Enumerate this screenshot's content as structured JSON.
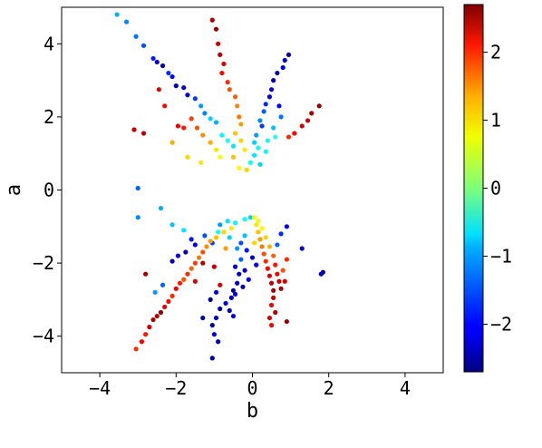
{
  "chart_data": {
    "type": "scatter",
    "xlabel": "b",
    "ylabel": "a",
    "xlim": [
      -5,
      5
    ],
    "ylim": [
      -5,
      5
    ],
    "xticks": [
      -4,
      -2,
      0,
      2,
      4
    ],
    "yticks": [
      -4,
      -2,
      0,
      2,
      4
    ],
    "x_tick_labels": [
      "−4",
      "−2",
      "0",
      "2",
      "4"
    ],
    "y_tick_labels": [
      "−4",
      "−2",
      "0",
      "2",
      "4"
    ],
    "grid": false,
    "colorbar": {
      "range": [
        -2.7,
        2.7
      ],
      "colormap": "jet",
      "ticks": [
        -2,
        -1,
        0,
        1,
        2
      ],
      "tick_labels": [
        "−2",
        "−1",
        "0",
        "1",
        "2"
      ]
    },
    "points": [
      {
        "b": -3.55,
        "a": 4.8,
        "c": -1.1
      },
      {
        "b": -3.3,
        "a": 4.6,
        "c": -1.3
      },
      {
        "b": -3.05,
        "a": 4.2,
        "c": -1.4
      },
      {
        "b": -2.85,
        "a": 3.95,
        "c": -1.6
      },
      {
        "b": -2.6,
        "a": 3.6,
        "c": -1.9
      },
      {
        "b": -2.5,
        "a": 3.5,
        "c": -2.2
      },
      {
        "b": -2.35,
        "a": 3.4,
        "c": -2.4
      },
      {
        "b": -2.2,
        "a": 3.2,
        "c": -1.8
      },
      {
        "b": -2.1,
        "a": 3.1,
        "c": -2.0
      },
      {
        "b": -2.0,
        "a": 2.85,
        "c": -2.3
      },
      {
        "b": -1.8,
        "a": 2.8,
        "c": -2.2
      },
      {
        "b": -1.7,
        "a": 2.6,
        "c": -2.1
      },
      {
        "b": -1.5,
        "a": 2.5,
        "c": -1.7
      },
      {
        "b": -1.35,
        "a": 2.3,
        "c": -1.2
      },
      {
        "b": -1.25,
        "a": 2.1,
        "c": -1.3
      },
      {
        "b": -1.1,
        "a": 1.95,
        "c": -0.9
      },
      {
        "b": -0.95,
        "a": 1.85,
        "c": -1.1
      },
      {
        "b": -0.8,
        "a": 1.5,
        "c": -0.7
      },
      {
        "b": -0.65,
        "a": 1.35,
        "c": -0.5
      },
      {
        "b": -0.5,
        "a": 1.2,
        "c": -0.8
      },
      {
        "b": -1.05,
        "a": 4.65,
        "c": 2.5
      },
      {
        "b": -0.95,
        "a": 4.4,
        "c": 2.6
      },
      {
        "b": -0.9,
        "a": 4.0,
        "c": 2.3
      },
      {
        "b": -0.85,
        "a": 3.7,
        "c": 2.4
      },
      {
        "b": -0.75,
        "a": 3.45,
        "c": 2.2
      },
      {
        "b": -0.8,
        "a": 3.2,
        "c": 2.0
      },
      {
        "b": -0.65,
        "a": 2.95,
        "c": 1.8
      },
      {
        "b": -0.6,
        "a": 2.75,
        "c": 1.6
      },
      {
        "b": -0.45,
        "a": 2.55,
        "c": 1.5
      },
      {
        "b": -0.4,
        "a": 2.3,
        "c": 1.3
      },
      {
        "b": -0.35,
        "a": 2.0,
        "c": 1.4
      },
      {
        "b": -0.3,
        "a": 1.8,
        "c": 1.2
      },
      {
        "b": -0.45,
        "a": 1.55,
        "c": 1.0
      },
      {
        "b": -0.3,
        "a": 1.35,
        "c": 0.9
      },
      {
        "b": -0.2,
        "a": 1.1,
        "c": 0.8
      },
      {
        "b": -0.5,
        "a": 0.9,
        "c": 1.0
      },
      {
        "b": -0.35,
        "a": 0.6,
        "c": 0.7
      },
      {
        "b": -0.15,
        "a": 0.55,
        "c": 0.9
      },
      {
        "b": -1.6,
        "a": 1.95,
        "c": 1.7
      },
      {
        "b": -1.45,
        "a": 1.7,
        "c": 1.6
      },
      {
        "b": -1.3,
        "a": 1.5,
        "c": 1.3
      },
      {
        "b": -1.1,
        "a": 1.3,
        "c": 1.1
      },
      {
        "b": -0.95,
        "a": 1.1,
        "c": 0.8
      },
      {
        "b": -0.85,
        "a": 0.9,
        "c": 0.6
      },
      {
        "b": -1.35,
        "a": 0.75,
        "c": 0.8
      },
      {
        "b": -1.7,
        "a": 0.9,
        "c": 0.9
      },
      {
        "b": -2.1,
        "a": 1.3,
        "c": 1.1
      },
      {
        "b": -1.8,
        "a": 1.7,
        "c": 1.9
      },
      {
        "b": -1.95,
        "a": 1.75,
        "c": 2.1
      },
      {
        "b": -2.3,
        "a": 2.3,
        "c": 2.0
      },
      {
        "b": -2.45,
        "a": 2.75,
        "c": 2.2
      },
      {
        "b": -3.1,
        "a": 1.65,
        "c": 2.3
      },
      {
        "b": -2.85,
        "a": 1.55,
        "c": 2.4
      },
      {
        "b": 0.95,
        "a": 3.7,
        "c": -2.4
      },
      {
        "b": 0.85,
        "a": 3.55,
        "c": -2.3
      },
      {
        "b": 0.8,
        "a": 3.35,
        "c": -2.2
      },
      {
        "b": 0.65,
        "a": 3.2,
        "c": -2.5
      },
      {
        "b": 0.55,
        "a": 3.0,
        "c": -2.4
      },
      {
        "b": 0.5,
        "a": 2.75,
        "c": -2.1
      },
      {
        "b": 0.45,
        "a": 2.55,
        "c": -2.2
      },
      {
        "b": 0.35,
        "a": 2.35,
        "c": -1.8
      },
      {
        "b": 0.3,
        "a": 2.15,
        "c": -1.5
      },
      {
        "b": 0.2,
        "a": 1.9,
        "c": -1.3
      },
      {
        "b": 0.25,
        "a": 1.75,
        "c": -1.7
      },
      {
        "b": 0.1,
        "a": 1.5,
        "c": -1.2
      },
      {
        "b": 0.05,
        "a": 1.3,
        "c": -0.9
      },
      {
        "b": 0.15,
        "a": 1.15,
        "c": -0.6
      },
      {
        "b": 0.35,
        "a": 1.05,
        "c": -0.7
      },
      {
        "b": 0.05,
        "a": 0.95,
        "c": -0.8
      },
      {
        "b": -0.05,
        "a": 0.75,
        "c": -0.6
      },
      {
        "b": 0.2,
        "a": 0.7,
        "c": -0.9
      },
      {
        "b": 0.6,
        "a": 1.45,
        "c": -0.5
      },
      {
        "b": 0.75,
        "a": 2.0,
        "c": -1.4
      },
      {
        "b": 0.7,
        "a": 2.3,
        "c": -2.0
      },
      {
        "b": 0.55,
        "a": 1.7,
        "c": -1.0
      },
      {
        "b": 0.4,
        "a": 1.35,
        "c": -0.6
      },
      {
        "b": 1.75,
        "a": 2.3,
        "c": 2.6
      },
      {
        "b": 1.55,
        "a": 2.1,
        "c": 2.5
      },
      {
        "b": 1.45,
        "a": 1.9,
        "c": 2.3
      },
      {
        "b": 1.3,
        "a": 1.75,
        "c": 2.2
      },
      {
        "b": 1.1,
        "a": 1.55,
        "c": 2.0
      },
      {
        "b": 0.95,
        "a": 1.45,
        "c": 1.8
      },
      {
        "b": -3.0,
        "a": 0.05,
        "c": -1.5
      },
      {
        "b": -2.4,
        "a": -0.5,
        "c": -1.1
      },
      {
        "b": -3.0,
        "a": -0.75,
        "c": -1.3
      },
      {
        "b": -2.1,
        "a": -0.95,
        "c": -1.0
      },
      {
        "b": -1.8,
        "a": -1.1,
        "c": -0.8
      },
      {
        "b": -1.6,
        "a": -1.35,
        "c": -1.9
      },
      {
        "b": -1.5,
        "a": -1.5,
        "c": -2.1
      },
      {
        "b": -1.75,
        "a": -1.7,
        "c": -2.3
      },
      {
        "b": -1.95,
        "a": -1.8,
        "c": -2.2
      },
      {
        "b": -2.1,
        "a": -1.95,
        "c": -2.4
      },
      {
        "b": -1.25,
        "a": -1.25,
        "c": -1.6
      },
      {
        "b": -1.05,
        "a": -1.45,
        "c": -1.7
      },
      {
        "b": -0.85,
        "a": -0.95,
        "c": -1.2
      },
      {
        "b": -0.65,
        "a": -0.85,
        "c": -0.8
      },
      {
        "b": -0.45,
        "a": -0.9,
        "c": -0.7
      },
      {
        "b": -0.2,
        "a": -0.8,
        "c": -0.6
      },
      {
        "b": -0.05,
        "a": -0.75,
        "c": -0.9
      },
      {
        "b": -0.9,
        "a": -1.15,
        "c": -0.6
      },
      {
        "b": -0.6,
        "a": -1.3,
        "c": -0.9
      },
      {
        "b": -0.4,
        "a": -1.6,
        "c": -1.2
      },
      {
        "b": -0.3,
        "a": -1.9,
        "c": -1.5
      },
      {
        "b": -0.45,
        "a": -2.1,
        "c": -2.2
      },
      {
        "b": -0.35,
        "a": -2.3,
        "c": -2.3
      },
      {
        "b": -0.4,
        "a": -2.55,
        "c": -2.4
      },
      {
        "b": -0.5,
        "a": -2.75,
        "c": -2.5
      },
      {
        "b": -0.55,
        "a": -2.95,
        "c": -2.3
      },
      {
        "b": -0.7,
        "a": -3.1,
        "c": -2.2
      },
      {
        "b": -0.6,
        "a": -3.3,
        "c": -2.4
      },
      {
        "b": -0.5,
        "a": -3.45,
        "c": -2.1
      },
      {
        "b": -0.85,
        "a": -3.25,
        "c": -2.5
      },
      {
        "b": -0.95,
        "a": -3.5,
        "c": -2.3
      },
      {
        "b": -1.05,
        "a": -3.7,
        "c": -2.6
      },
      {
        "b": -1.0,
        "a": -3.95,
        "c": -2.2
      },
      {
        "b": -0.9,
        "a": -4.15,
        "c": -2.4
      },
      {
        "b": -1.05,
        "a": -4.6,
        "c": -2.5
      },
      {
        "b": -1.3,
        "a": -3.5,
        "c": -2.4
      },
      {
        "b": -1.1,
        "a": -3.0,
        "c": -2.6
      },
      {
        "b": -0.95,
        "a": -2.8,
        "c": -2.2
      },
      {
        "b": -0.2,
        "a": -1.25,
        "c": -1.0
      },
      {
        "b": -2.55,
        "a": -2.8,
        "c": -1.2
      },
      {
        "b": -2.35,
        "a": -2.6,
        "c": -1.5
      },
      {
        "b": -3.05,
        "a": -4.35,
        "c": 1.8
      },
      {
        "b": -2.9,
        "a": -4.15,
        "c": 2.1
      },
      {
        "b": -2.8,
        "a": -3.95,
        "c": 1.9
      },
      {
        "b": -2.7,
        "a": -3.75,
        "c": 2.3
      },
      {
        "b": -2.6,
        "a": -3.55,
        "c": 2.5
      },
      {
        "b": -2.5,
        "a": -3.45,
        "c": 2.4
      },
      {
        "b": -2.4,
        "a": -3.35,
        "c": 2.6
      },
      {
        "b": -2.3,
        "a": -3.2,
        "c": 2.2
      },
      {
        "b": -2.2,
        "a": -3.05,
        "c": 2.0
      },
      {
        "b": -2.1,
        "a": -2.9,
        "c": 1.8
      },
      {
        "b": -2.0,
        "a": -2.7,
        "c": 2.1
      },
      {
        "b": -1.9,
        "a": -2.55,
        "c": 1.9
      },
      {
        "b": -1.8,
        "a": -2.45,
        "c": 1.6
      },
      {
        "b": -1.7,
        "a": -2.3,
        "c": 1.8
      },
      {
        "b": -1.6,
        "a": -2.15,
        "c": 1.5
      },
      {
        "b": -1.5,
        "a": -2.0,
        "c": 1.7
      },
      {
        "b": -1.4,
        "a": -1.85,
        "c": 1.4
      },
      {
        "b": -1.3,
        "a": -1.7,
        "c": 1.6
      },
      {
        "b": -1.2,
        "a": -1.55,
        "c": 1.3
      },
      {
        "b": -1.1,
        "a": -1.4,
        "c": 1.2
      },
      {
        "b": -0.95,
        "a": -1.3,
        "c": 1.0
      },
      {
        "b": -0.75,
        "a": -1.15,
        "c": 0.9
      },
      {
        "b": -0.55,
        "a": -1.05,
        "c": 0.8
      },
      {
        "b": -1.3,
        "a": -2.0,
        "c": 2.4
      },
      {
        "b": -1.0,
        "a": -2.1,
        "c": 2.3
      },
      {
        "b": -1.5,
        "a": -2.5,
        "c": 2.2
      },
      {
        "b": -2.8,
        "a": -2.3,
        "c": 2.5
      },
      {
        "b": -0.85,
        "a": -2.6,
        "c": 2.2
      },
      {
        "b": -0.7,
        "a": -1.6,
        "c": 1.2
      },
      {
        "b": 0.05,
        "a": -0.75,
        "c": 0.6
      },
      {
        "b": 0.1,
        "a": -0.95,
        "c": 0.8
      },
      {
        "b": 0.15,
        "a": -1.15,
        "c": 1.0
      },
      {
        "b": 0.2,
        "a": -1.35,
        "c": 1.2
      },
      {
        "b": 0.25,
        "a": -1.55,
        "c": 1.4
      },
      {
        "b": 0.3,
        "a": -1.75,
        "c": 1.6
      },
      {
        "b": 0.35,
        "a": -1.95,
        "c": 1.8
      },
      {
        "b": 0.4,
        "a": -2.15,
        "c": 2.0
      },
      {
        "b": 0.45,
        "a": -2.35,
        "c": 2.2
      },
      {
        "b": 0.5,
        "a": -2.55,
        "c": 2.4
      },
      {
        "b": 0.55,
        "a": -2.75,
        "c": 2.5
      },
      {
        "b": 0.55,
        "a": -2.95,
        "c": 2.3
      },
      {
        "b": 0.5,
        "a": -3.15,
        "c": 2.1
      },
      {
        "b": 0.6,
        "a": -3.35,
        "c": 2.4
      },
      {
        "b": 0.45,
        "a": -3.5,
        "c": 2.2
      },
      {
        "b": 0.5,
        "a": -3.7,
        "c": 2.0
      },
      {
        "b": 0.25,
        "a": -1.05,
        "c": 0.7
      },
      {
        "b": 0.35,
        "a": -1.3,
        "c": 0.9
      },
      {
        "b": 0.45,
        "a": -1.55,
        "c": 1.1
      },
      {
        "b": 0.55,
        "a": -1.8,
        "c": 1.5
      },
      {
        "b": 0.6,
        "a": -2.05,
        "c": 1.9
      },
      {
        "b": 0.65,
        "a": -2.3,
        "c": 2.1
      },
      {
        "b": 0.7,
        "a": -2.5,
        "c": 2.3
      },
      {
        "b": 0.75,
        "a": -2.7,
        "c": 2.5
      },
      {
        "b": 0.85,
        "a": -2.5,
        "c": 2.2
      },
      {
        "b": 0.9,
        "a": -3.6,
        "c": 2.6
      },
      {
        "b": 0.8,
        "a": -2.2,
        "c": 1.6
      },
      {
        "b": 0.9,
        "a": -1.9,
        "c": 1.8
      },
      {
        "b": 0.05,
        "a": -1.45,
        "c": 0.9
      },
      {
        "b": 0.15,
        "a": -0.85,
        "c": 0.5
      },
      {
        "b": 0.65,
        "a": -1.5,
        "c": -1.5
      },
      {
        "b": 0.75,
        "a": -1.2,
        "c": -1.8
      },
      {
        "b": 0.9,
        "a": -1.0,
        "c": -2.1
      },
      {
        "b": 1.3,
        "a": -1.6,
        "c": -2.2
      },
      {
        "b": 1.85,
        "a": -2.25,
        "c": -2.5
      },
      {
        "b": 1.8,
        "a": -2.3,
        "c": -2.4
      },
      {
        "b": -0.3,
        "a": -1.45,
        "c": -1.6
      },
      {
        "b": -0.15,
        "a": -1.65,
        "c": -1.9
      },
      {
        "b": 0.0,
        "a": -1.85,
        "c": -2.2
      },
      {
        "b": 0.1,
        "a": -2.05,
        "c": -2.0
      },
      {
        "b": -0.2,
        "a": -2.2,
        "c": -2.3
      },
      {
        "b": -0.1,
        "a": -2.45,
        "c": -2.1
      },
      {
        "b": -0.25,
        "a": -2.65,
        "c": -2.4
      },
      {
        "b": -0.45,
        "a": -2.85,
        "c": -2.2
      }
    ]
  }
}
